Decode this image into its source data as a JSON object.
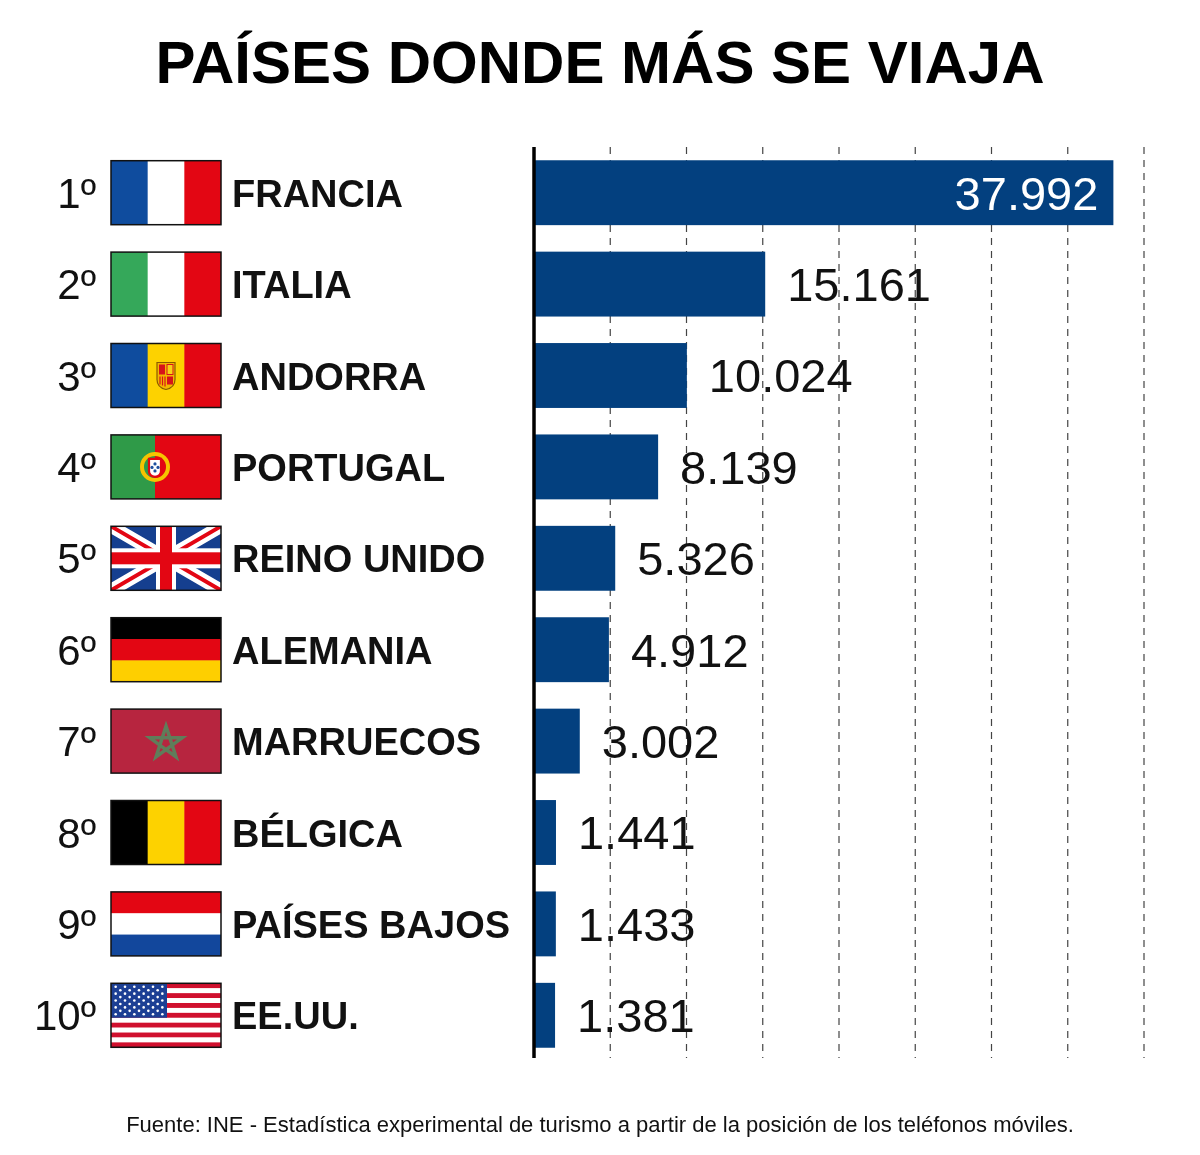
{
  "chart_data": {
    "type": "bar",
    "orientation": "horizontal",
    "title": "PAÍSES DONDE MÁS SE VIAJA",
    "categories": [
      "FRANCIA",
      "ITALIA",
      "ANDORRA",
      "PORTUGAL",
      "REINO UNIDO",
      "ALEMANIA",
      "MARRUECOS",
      "BÉLGICA",
      "PAÍSES BAJOS",
      "EE.UU."
    ],
    "values": [
      37992,
      15161,
      10024,
      8139,
      5326,
      4912,
      3002,
      1441,
      1433,
      1381
    ],
    "value_labels": [
      "37.992",
      "15.161",
      "10.024",
      "8.139",
      "5.326",
      "4.912",
      "3.002",
      "1.441",
      "1.433",
      "1.381"
    ],
    "color": "#03407f",
    "xlim": [
      0,
      40000
    ],
    "xticks": [
      {
        "value": 5000,
        "label": null
      },
      {
        "value": 10000,
        "label": null
      },
      {
        "value": 15000,
        "label": null
      },
      {
        "value": 20000,
        "label": null
      },
      {
        "value": 25000,
        "label": null
      },
      {
        "value": 30000,
        "label": null
      },
      {
        "value": 35000,
        "label": null
      },
      {
        "value": 40000,
        "label": null
      }
    ],
    "grid": "x",
    "tick_labels": "y",
    "annotations": [
      "1º",
      "2º",
      "3º",
      "4º",
      "5º",
      "6º",
      "7º",
      "8º",
      "9º",
      "10º",
      "Fuente: INE - Estadística experimental de turismo a partir de la posición de los teléfonos móviles."
    ]
  }
}
